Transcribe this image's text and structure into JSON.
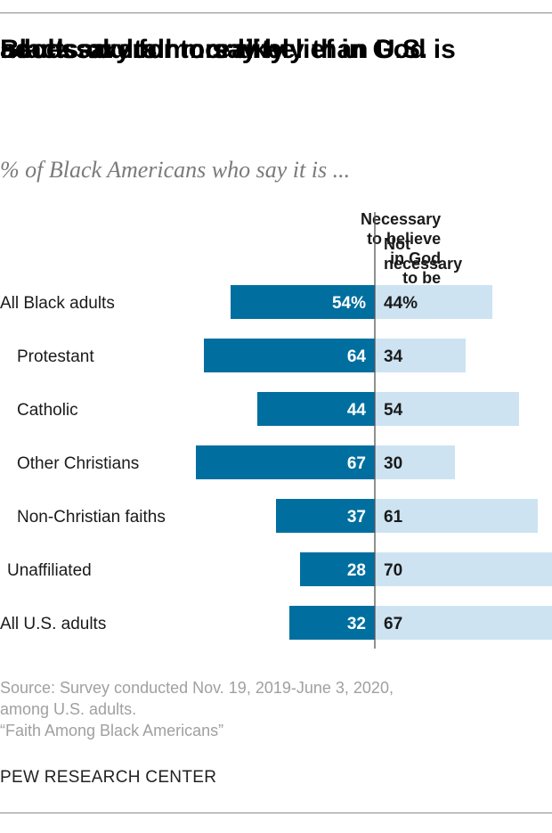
{
  "title_lines": [
    "Black adults more likely than U.S.",
    "adults overall to say belief in God is",
    "necessary for morality"
  ],
  "subtitle": "% of Black Americans who say it is ...",
  "colors": {
    "necessary": "#006fa0",
    "not_necessary": "#cde3f2",
    "label_dark": "#1a1a1a",
    "axis": "#555555"
  },
  "chart_data": {
    "type": "bar",
    "orientation": "horizontal-diverging",
    "title": "Black adults more likely than U.S. adults overall to say belief in God is necessary for morality",
    "subtitle": "% of Black Americans who say it is ...",
    "categories": [
      "All Black adults",
      "Protestant",
      "Catholic",
      "Other Christians",
      "Non-Christian faiths",
      "Unaffiliated",
      "All U.S. adults"
    ],
    "indented": [
      false,
      true,
      true,
      true,
      true,
      false,
      false
    ],
    "series": [
      {
        "name": "Necessary to believe in God to be moral",
        "values": [
          54,
          64,
          44,
          67,
          37,
          28,
          32
        ],
        "labels": [
          "54%",
          "64",
          "44",
          "67",
          "37",
          "28",
          "32"
        ]
      },
      {
        "name": "Not necessary",
        "values": [
          44,
          34,
          54,
          30,
          61,
          70,
          67
        ],
        "labels": [
          "44%",
          "34",
          "54",
          "30",
          "61",
          "70",
          "67"
        ]
      }
    ],
    "xlim": [
      0,
      100
    ],
    "grid": false,
    "legend": "column-headers"
  },
  "col_headers": {
    "left": "Necessary\nto believe in God\nto be moral",
    "right": "Not\nnecessary"
  },
  "footer": {
    "source_line1": "Source: Survey conducted Nov. 19, 2019-June 3, 2020,",
    "source_line2": "among U.S. adults.",
    "report": "“Faith Among Black Americans”",
    "brand": "PEW RESEARCH CENTER"
  }
}
